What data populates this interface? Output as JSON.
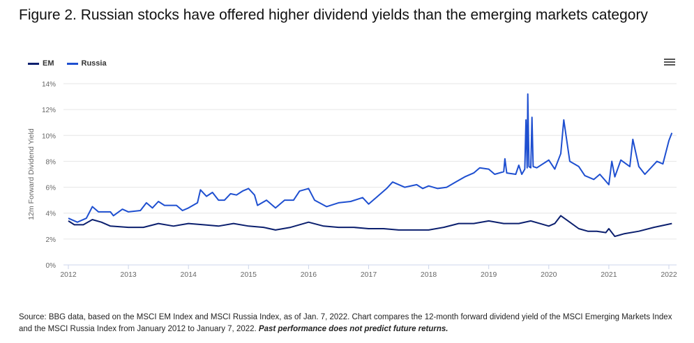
{
  "title": "Figure 2. Russian stocks have offered higher dividend yields than the emerging markets category",
  "menu_icon": "hamburger-menu-icon",
  "chart_data": {
    "type": "line",
    "ylabel": "12m Forward Dividend Yield",
    "ylim": [
      0,
      14
    ],
    "yticks": [
      "0%",
      "2%",
      "4%",
      "6%",
      "8%",
      "10%",
      "12%",
      "14%"
    ],
    "xlim": [
      2012,
      2022.1
    ],
    "xticks": [
      "2012",
      "2013",
      "2014",
      "2015",
      "2016",
      "2017",
      "2018",
      "2019",
      "2020",
      "2021",
      "2022"
    ],
    "grid": true,
    "legend": "top-left",
    "series": [
      {
        "name": "EM",
        "color": "#0b1f6e",
        "x": [
          2012,
          2012.1,
          2012.25,
          2012.4,
          2012.55,
          2012.7,
          2013,
          2013.25,
          2013.5,
          2013.75,
          2014,
          2014.25,
          2014.5,
          2014.75,
          2015,
          2015.25,
          2015.45,
          2015.7,
          2016,
          2016.25,
          2016.5,
          2016.75,
          2017,
          2017.25,
          2017.5,
          2017.75,
          2018,
          2018.25,
          2018.5,
          2018.75,
          2019,
          2019.25,
          2019.5,
          2019.7,
          2019.85,
          2020,
          2020.1,
          2020.2,
          2020.35,
          2020.5,
          2020.65,
          2020.8,
          2020.95,
          2021.0,
          2021.1,
          2021.25,
          2021.5,
          2021.75,
          2022.05
        ],
        "y": [
          3.4,
          3.1,
          3.1,
          3.5,
          3.3,
          3.0,
          2.9,
          2.9,
          3.2,
          3.0,
          3.2,
          3.1,
          3.0,
          3.2,
          3.0,
          2.9,
          2.7,
          2.9,
          3.3,
          3.0,
          2.9,
          2.9,
          2.8,
          2.8,
          2.7,
          2.7,
          2.7,
          2.9,
          3.2,
          3.2,
          3.4,
          3.2,
          3.2,
          3.4,
          3.2,
          3.0,
          3.2,
          3.8,
          3.3,
          2.8,
          2.6,
          2.6,
          2.5,
          2.8,
          2.2,
          2.4,
          2.6,
          2.9,
          3.2
        ]
      },
      {
        "name": "Russia",
        "color": "#1e4fd0",
        "x": [
          2012,
          2012.15,
          2012.3,
          2012.4,
          2012.5,
          2012.7,
          2012.75,
          2012.9,
          2013,
          2013.2,
          2013.3,
          2013.4,
          2013.5,
          2013.6,
          2013.8,
          2013.9,
          2014,
          2014.15,
          2014.2,
          2014.3,
          2014.4,
          2014.5,
          2014.6,
          2014.7,
          2014.8,
          2014.9,
          2015,
          2015.1,
          2015.15,
          2015.3,
          2015.45,
          2015.6,
          2015.75,
          2015.85,
          2016,
          2016.1,
          2016.3,
          2016.5,
          2016.7,
          2016.9,
          2017,
          2017.15,
          2017.3,
          2017.4,
          2017.6,
          2017.8,
          2017.9,
          2018,
          2018.15,
          2018.3,
          2018.45,
          2018.6,
          2018.75,
          2018.85,
          2019,
          2019.1,
          2019.25,
          2019.27,
          2019.3,
          2019.45,
          2019.5,
          2019.55,
          2019.6,
          2019.62,
          2019.64,
          2019.65,
          2019.67,
          2019.7,
          2019.72,
          2019.74,
          2019.8,
          2020,
          2020.1,
          2020.2,
          2020.25,
          2020.35,
          2020.5,
          2020.6,
          2020.75,
          2020.85,
          2021,
          2021.05,
          2021.1,
          2021.2,
          2021.35,
          2021.4,
          2021.5,
          2021.6,
          2021.8,
          2021.9,
          2022,
          2022.05
        ],
        "y": [
          3.6,
          3.3,
          3.6,
          4.5,
          4.1,
          4.1,
          3.8,
          4.3,
          4.1,
          4.2,
          4.8,
          4.4,
          4.9,
          4.6,
          4.6,
          4.2,
          4.4,
          4.8,
          5.8,
          5.3,
          5.6,
          5.0,
          5.0,
          5.5,
          5.4,
          5.7,
          5.9,
          5.4,
          4.6,
          5.0,
          4.4,
          5.0,
          5.0,
          5.7,
          5.9,
          5.0,
          4.5,
          4.8,
          4.9,
          5.2,
          4.7,
          5.3,
          5.9,
          6.4,
          6.0,
          6.2,
          5.9,
          6.1,
          5.9,
          6.0,
          6.4,
          6.8,
          7.1,
          7.5,
          7.4,
          7.0,
          7.2,
          8.2,
          7.1,
          7.0,
          7.7,
          7.0,
          7.4,
          11.2,
          7.5,
          13.2,
          7.6,
          7.5,
          11.4,
          7.6,
          7.5,
          8.1,
          7.4,
          8.6,
          11.2,
          8.0,
          7.6,
          6.9,
          6.6,
          7.0,
          6.2,
          8.0,
          6.8,
          8.1,
          7.6,
          9.7,
          7.6,
          7.0,
          8.0,
          7.8,
          9.6,
          10.2
        ]
      }
    ]
  },
  "footnote": {
    "text": "Source: BBG data, based on the MSCI EM Index and MSCI Russia Index, as of Jan. 7, 2022. Chart compares the 12-month forward dividend yield of the MSCI Emerging Markets Index and the MSCI Russia Index from January 2012 to January 7, 2022. ",
    "bold": "Past performance does not predict future returns."
  }
}
